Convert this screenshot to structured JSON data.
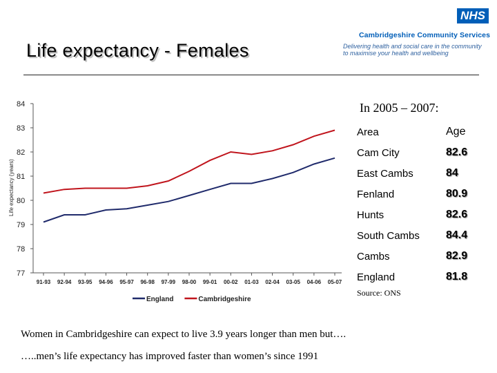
{
  "header": {
    "title": "Life expectancy  - Females",
    "logo_text": "NHS",
    "org_name": "Cambridgeshire Community Services",
    "tagline_line1": "Delivering health and social care in the community",
    "tagline_line2": "to maximise your health and wellbeing"
  },
  "colors": {
    "england": "#1f2a6b",
    "cambridgeshire": "#c0141c",
    "nhs_blue": "#005EB8"
  },
  "chart_data": {
    "type": "line",
    "title": "",
    "xlabel": "",
    "ylabel": "Life expectancy (years)",
    "ylim": [
      77,
      84
    ],
    "yticks": [
      77,
      78,
      79,
      80,
      81,
      82,
      83,
      84
    ],
    "categories": [
      "91-93",
      "92-94",
      "93-95",
      "94-96",
      "95-97",
      "96-98",
      "97-99",
      "98-00",
      "99-01",
      "00-02",
      "01-03",
      "02-04",
      "03-05",
      "04-06",
      "05-07"
    ],
    "series": [
      {
        "name": "England",
        "values": [
          79.1,
          79.4,
          79.4,
          79.6,
          79.65,
          79.8,
          79.95,
          80.2,
          80.45,
          80.7,
          80.7,
          80.9,
          81.15,
          81.5,
          81.75
        ]
      },
      {
        "name": "Cambridgeshire",
        "values": [
          80.3,
          80.45,
          80.5,
          80.5,
          80.5,
          80.6,
          80.8,
          81.2,
          81.65,
          82.0,
          81.9,
          82.05,
          82.3,
          82.65,
          82.9
        ]
      }
    ]
  },
  "summary": {
    "intro": "In 2005 – 2007:",
    "col_area": "Area",
    "col_age": "Age",
    "rows": [
      {
        "area": "Cam City",
        "age": "82.6"
      },
      {
        "area": "East Cambs",
        "age": "84"
      },
      {
        "area": "Fenland",
        "age": "80.9"
      },
      {
        "area": "Hunts",
        "age": "82.6"
      },
      {
        "area": "South Cambs",
        "age": "84.4"
      },
      {
        "area": "Cambs",
        "age": "82.9"
      },
      {
        "area": "England",
        "age": "81.8"
      }
    ],
    "source": "Source: ONS"
  },
  "notes": {
    "line1": "Women in Cambridgeshire can expect to live 3.9 years longer than men but….",
    "line2": "…..men’s life expectancy has improved faster than women’s since 1991"
  }
}
